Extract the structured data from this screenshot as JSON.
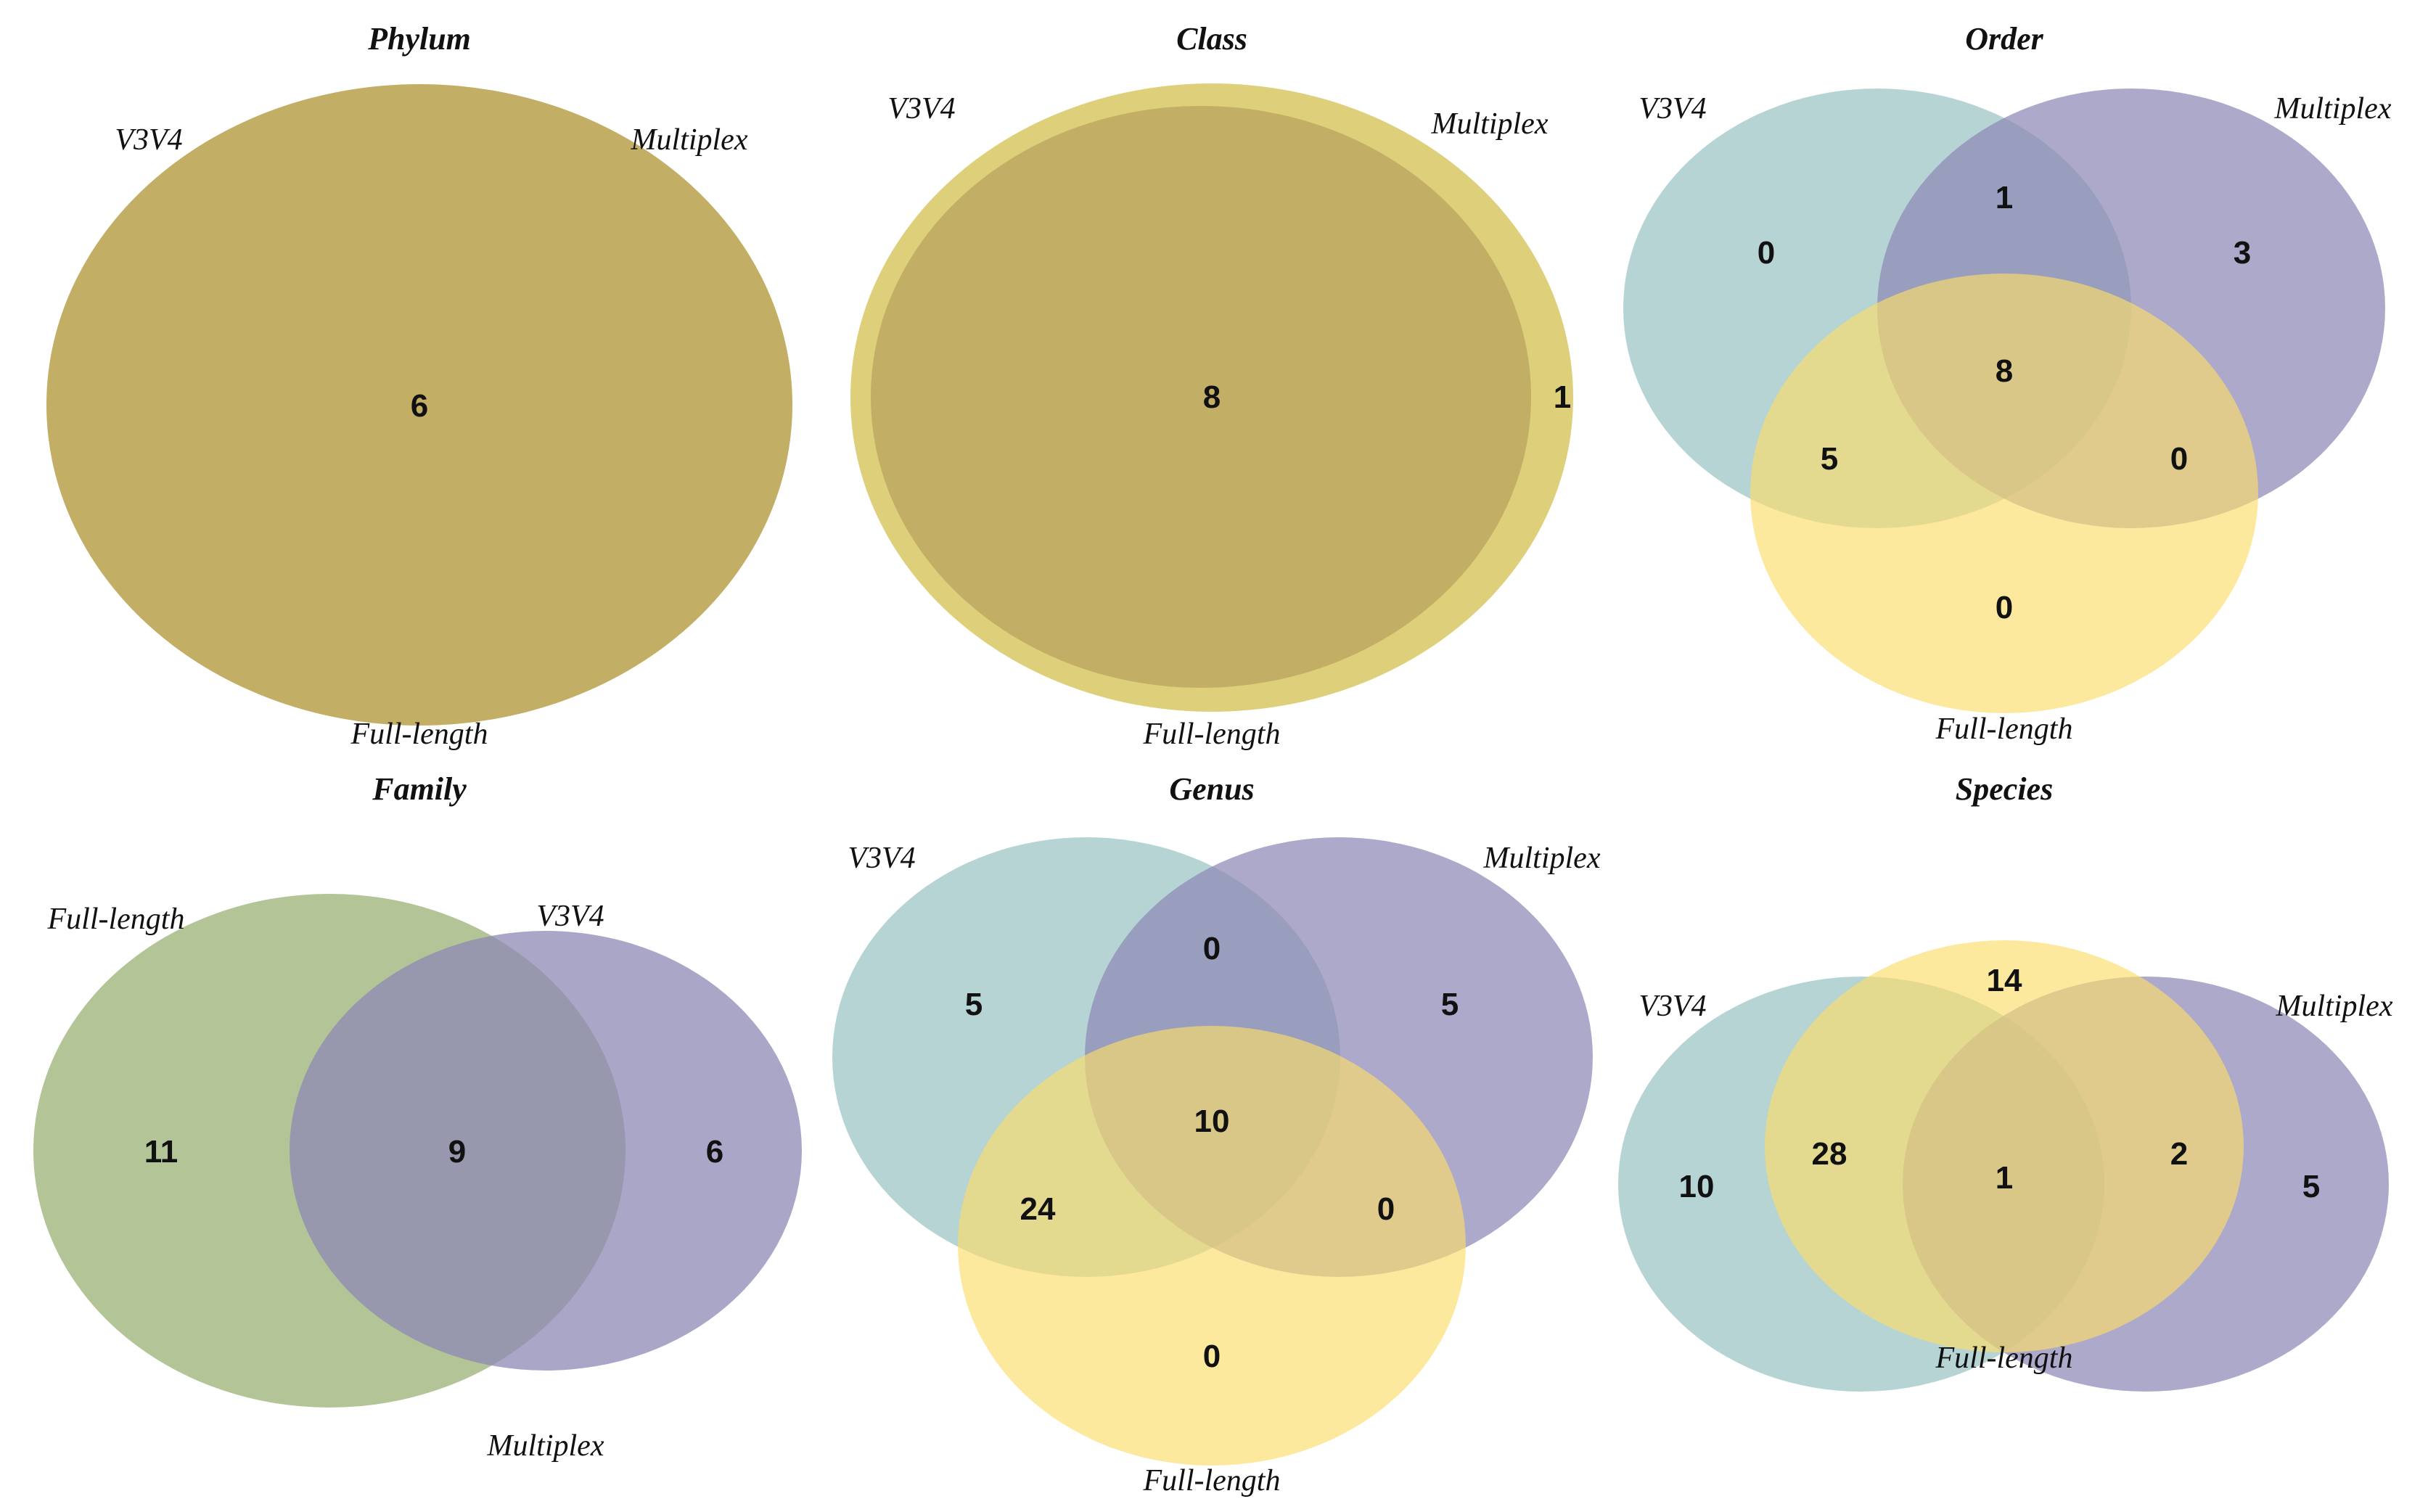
{
  "chart_data": [
    {
      "type": "venn",
      "title": "Phylum",
      "sets": [
        "V3V4",
        "Multiplex",
        "Full-length"
      ],
      "regions": [
        {
          "sets": [
            "V3V4",
            "Multiplex",
            "Full-length"
          ],
          "count": 6
        }
      ]
    },
    {
      "type": "venn",
      "title": "Class",
      "sets": [
        "V3V4",
        "Multiplex",
        "Full-length"
      ],
      "regions": [
        {
          "sets": [
            "V3V4",
            "Multiplex",
            "Full-length"
          ],
          "count": 8
        },
        {
          "sets": [
            "Full-length"
          ],
          "count": 1
        }
      ]
    },
    {
      "type": "venn",
      "title": "Order",
      "sets": [
        "V3V4",
        "Multiplex",
        "Full-length"
      ],
      "regions": [
        {
          "sets": [
            "V3V4"
          ],
          "count": 0
        },
        {
          "sets": [
            "V3V4",
            "Multiplex"
          ],
          "count": 1
        },
        {
          "sets": [
            "Multiplex"
          ],
          "count": 3
        },
        {
          "sets": [
            "V3V4",
            "Multiplex",
            "Full-length"
          ],
          "count": 8
        },
        {
          "sets": [
            "V3V4",
            "Full-length"
          ],
          "count": 5
        },
        {
          "sets": [
            "Multiplex",
            "Full-length"
          ],
          "count": 0
        },
        {
          "sets": [
            "Full-length"
          ],
          "count": 0
        }
      ]
    },
    {
      "type": "venn",
      "title": "Family",
      "sets": [
        "Full-length",
        "V3V4",
        "Multiplex"
      ],
      "regions": [
        {
          "sets": [
            "Full-length"
          ],
          "count": 11
        },
        {
          "sets": [
            "Full-length",
            "V3V4",
            "Multiplex"
          ],
          "count": 9
        },
        {
          "sets": [
            "V3V4",
            "Multiplex"
          ],
          "count": 6
        }
      ]
    },
    {
      "type": "venn",
      "title": "Genus",
      "sets": [
        "V3V4",
        "Multiplex",
        "Full-length"
      ],
      "regions": [
        {
          "sets": [
            "V3V4"
          ],
          "count": 5
        },
        {
          "sets": [
            "V3V4",
            "Multiplex"
          ],
          "count": 0
        },
        {
          "sets": [
            "Multiplex"
          ],
          "count": 5
        },
        {
          "sets": [
            "V3V4",
            "Multiplex",
            "Full-length"
          ],
          "count": 10
        },
        {
          "sets": [
            "V3V4",
            "Full-length"
          ],
          "count": 24
        },
        {
          "sets": [
            "Multiplex",
            "Full-length"
          ],
          "count": 0
        },
        {
          "sets": [
            "Full-length"
          ],
          "count": 0
        }
      ]
    },
    {
      "type": "venn",
      "title": "Species",
      "sets": [
        "V3V4",
        "Multiplex",
        "Full-length"
      ],
      "regions": [
        {
          "sets": [
            "V3V4"
          ],
          "count": 10
        },
        {
          "sets": [
            "Full-length"
          ],
          "count": 14
        },
        {
          "sets": [
            "V3V4",
            "Full-length"
          ],
          "count": 28
        },
        {
          "sets": [
            "V3V4",
            "Multiplex",
            "Full-length"
          ],
          "count": 1
        },
        {
          "sets": [
            "Multiplex",
            "Full-length"
          ],
          "count": 2
        },
        {
          "sets": [
            "Multiplex"
          ],
          "count": 5
        }
      ]
    }
  ],
  "colors": {
    "v3v4": "#8FBDBD",
    "multiplex": "#8D88B6",
    "full_length": "#FCDD6A",
    "family_full_length": "#9DB37A",
    "overlap_all": "#C2AE65",
    "class_rim": "#DED07A"
  }
}
